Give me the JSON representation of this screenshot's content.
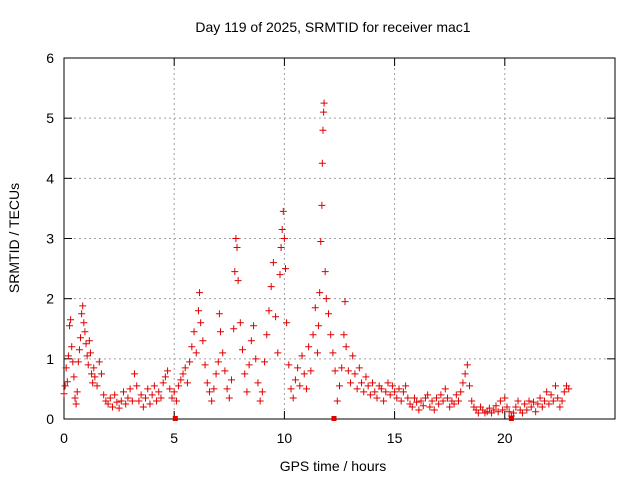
{
  "chart_data": {
    "type": "scatter",
    "title": "Day 119 of 2025, SRMTID for receiver mac1",
    "xlabel": "GPS time / hours",
    "ylabel": "SRMTID / TECUs",
    "xlim": [
      0,
      25
    ],
    "ylim": [
      0,
      6
    ],
    "x_ticks": [
      "0",
      "5",
      "10",
      "15",
      "20"
    ],
    "y_ticks": [
      "0",
      "1",
      "2",
      "3",
      "4",
      "5",
      "6"
    ],
    "grid": true,
    "marker": "+",
    "series": [
      {
        "name": "SRMTID",
        "color": "#e00000",
        "points": [
          [
            0.0,
            0.42
          ],
          [
            0.05,
            0.55
          ],
          [
            0.1,
            0.85
          ],
          [
            0.15,
            0.62
          ],
          [
            0.2,
            1.05
          ],
          [
            0.25,
            1.55
          ],
          [
            0.3,
            1.65
          ],
          [
            0.35,
            1.2
          ],
          [
            0.4,
            0.95
          ],
          [
            0.45,
            0.7
          ],
          [
            0.5,
            0.35
          ],
          [
            0.55,
            0.25
          ],
          [
            0.6,
            0.45
          ],
          [
            0.65,
            0.95
          ],
          [
            0.7,
            1.15
          ],
          [
            0.75,
            1.35
          ],
          [
            0.8,
            1.75
          ],
          [
            0.85,
            1.88
          ],
          [
            0.9,
            1.6
          ],
          [
            0.95,
            1.45
          ],
          [
            1.0,
            1.25
          ],
          [
            1.05,
            1.05
          ],
          [
            1.1,
            0.9
          ],
          [
            1.15,
            1.3
          ],
          [
            1.2,
            1.1
          ],
          [
            1.25,
            0.75
          ],
          [
            1.3,
            0.6
          ],
          [
            1.35,
            0.85
          ],
          [
            1.4,
            0.7
          ],
          [
            1.5,
            0.55
          ],
          [
            1.6,
            0.95
          ],
          [
            1.7,
            0.75
          ],
          [
            1.8,
            0.4
          ],
          [
            1.9,
            0.3
          ],
          [
            2.0,
            0.25
          ],
          [
            2.1,
            0.35
          ],
          [
            2.2,
            0.2
          ],
          [
            2.3,
            0.4
          ],
          [
            2.4,
            0.28
          ],
          [
            2.5,
            0.18
          ],
          [
            2.6,
            0.3
          ],
          [
            2.7,
            0.45
          ],
          [
            2.8,
            0.25
          ],
          [
            2.9,
            0.35
          ],
          [
            3.0,
            0.5
          ],
          [
            3.1,
            0.3
          ],
          [
            3.2,
            0.75
          ],
          [
            3.3,
            0.55
          ],
          [
            3.4,
            0.3
          ],
          [
            3.5,
            0.4
          ],
          [
            3.6,
            0.2
          ],
          [
            3.7,
            0.35
          ],
          [
            3.8,
            0.5
          ],
          [
            3.9,
            0.25
          ],
          [
            4.0,
            0.4
          ],
          [
            4.1,
            0.55
          ],
          [
            4.2,
            0.3
          ],
          [
            4.3,
            0.45
          ],
          [
            4.4,
            0.35
          ],
          [
            4.5,
            0.6
          ],
          [
            4.6,
            0.7
          ],
          [
            4.7,
            0.8
          ],
          [
            4.8,
            0.5
          ],
          [
            4.9,
            0.35
          ],
          [
            5.0,
            0.45
          ],
          [
            5.1,
            0.3
          ],
          [
            5.2,
            0.55
          ],
          [
            5.3,
            0.65
          ],
          [
            5.4,
            0.75
          ],
          [
            5.5,
            0.85
          ],
          [
            5.6,
            0.6
          ],
          [
            5.7,
            0.95
          ],
          [
            5.8,
            1.2
          ],
          [
            5.9,
            1.45
          ],
          [
            6.0,
            1.1
          ],
          [
            6.1,
            1.8
          ],
          [
            6.15,
            2.1
          ],
          [
            6.2,
            1.6
          ],
          [
            6.3,
            1.3
          ],
          [
            6.4,
            0.9
          ],
          [
            6.5,
            0.6
          ],
          [
            6.6,
            0.45
          ],
          [
            6.7,
            0.3
          ],
          [
            6.8,
            0.5
          ],
          [
            6.9,
            0.75
          ],
          [
            7.0,
            0.95
          ],
          [
            7.05,
            1.75
          ],
          [
            7.1,
            1.45
          ],
          [
            7.2,
            1.1
          ],
          [
            7.3,
            0.8
          ],
          [
            7.4,
            0.5
          ],
          [
            7.5,
            0.35
          ],
          [
            7.6,
            0.65
          ],
          [
            7.7,
            1.5
          ],
          [
            7.75,
            2.45
          ],
          [
            7.8,
            3.0
          ],
          [
            7.85,
            2.85
          ],
          [
            7.9,
            2.3
          ],
          [
            8.0,
            1.6
          ],
          [
            8.1,
            1.15
          ],
          [
            8.2,
            0.75
          ],
          [
            8.3,
            0.45
          ],
          [
            8.4,
            0.9
          ],
          [
            8.5,
            1.3
          ],
          [
            8.6,
            1.55
          ],
          [
            8.7,
            1.0
          ],
          [
            8.8,
            0.6
          ],
          [
            8.9,
            0.3
          ],
          [
            9.0,
            0.45
          ],
          [
            9.1,
            0.95
          ],
          [
            9.2,
            1.4
          ],
          [
            9.3,
            1.8
          ],
          [
            9.4,
            2.2
          ],
          [
            9.5,
            2.6
          ],
          [
            9.6,
            1.7
          ],
          [
            9.7,
            1.1
          ],
          [
            9.8,
            2.4
          ],
          [
            9.85,
            2.85
          ],
          [
            9.9,
            3.15
          ],
          [
            9.95,
            3.45
          ],
          [
            10.0,
            3.0
          ],
          [
            10.05,
            2.5
          ],
          [
            10.1,
            1.6
          ],
          [
            10.2,
            0.9
          ],
          [
            10.3,
            0.5
          ],
          [
            10.4,
            0.35
          ],
          [
            10.5,
            0.65
          ],
          [
            10.6,
            0.85
          ],
          [
            10.7,
            0.55
          ],
          [
            10.8,
            1.05
          ],
          [
            10.9,
            0.75
          ],
          [
            11.0,
            0.5
          ],
          [
            11.1,
            1.2
          ],
          [
            11.2,
            0.8
          ],
          [
            11.3,
            1.4
          ],
          [
            11.4,
            1.85
          ],
          [
            11.5,
            1.1
          ],
          [
            11.55,
            1.55
          ],
          [
            11.6,
            2.1
          ],
          [
            11.65,
            2.95
          ],
          [
            11.7,
            3.55
          ],
          [
            11.72,
            4.25
          ],
          [
            11.75,
            4.8
          ],
          [
            11.78,
            5.1
          ],
          [
            11.8,
            5.25
          ],
          [
            11.85,
            2.45
          ],
          [
            11.9,
            2.0
          ],
          [
            12.0,
            1.75
          ],
          [
            12.1,
            1.4
          ],
          [
            12.2,
            1.1
          ],
          [
            12.3,
            0.8
          ],
          [
            12.4,
            0.3
          ],
          [
            12.5,
            0.55
          ],
          [
            12.6,
            0.85
          ],
          [
            12.7,
            1.4
          ],
          [
            12.75,
            1.95
          ],
          [
            12.8,
            1.2
          ],
          [
            12.9,
            0.8
          ],
          [
            13.0,
            0.6
          ],
          [
            13.1,
            1.05
          ],
          [
            13.2,
            0.75
          ],
          [
            13.3,
            0.5
          ],
          [
            13.4,
            0.85
          ],
          [
            13.5,
            0.6
          ],
          [
            13.6,
            0.45
          ],
          [
            13.7,
            0.7
          ],
          [
            13.8,
            0.55
          ],
          [
            13.9,
            0.4
          ],
          [
            14.0,
            0.6
          ],
          [
            14.1,
            0.45
          ],
          [
            14.2,
            0.35
          ],
          [
            14.3,
            0.55
          ],
          [
            14.4,
            0.5
          ],
          [
            14.5,
            0.3
          ],
          [
            14.6,
            0.45
          ],
          [
            14.7,
            0.6
          ],
          [
            14.8,
            0.4
          ],
          [
            14.9,
            0.55
          ],
          [
            15.0,
            0.45
          ],
          [
            15.1,
            0.35
          ],
          [
            15.2,
            0.5
          ],
          [
            15.3,
            0.3
          ],
          [
            15.4,
            0.45
          ],
          [
            15.5,
            0.55
          ],
          [
            15.6,
            0.35
          ],
          [
            15.7,
            0.25
          ],
          [
            15.8,
            0.2
          ],
          [
            15.9,
            0.35
          ],
          [
            16.0,
            0.28
          ],
          [
            16.1,
            0.15
          ],
          [
            16.2,
            0.3
          ],
          [
            16.3,
            0.22
          ],
          [
            16.4,
            0.35
          ],
          [
            16.5,
            0.4
          ],
          [
            16.6,
            0.2
          ],
          [
            16.7,
            0.3
          ],
          [
            16.8,
            0.15
          ],
          [
            16.9,
            0.35
          ],
          [
            17.0,
            0.25
          ],
          [
            17.1,
            0.4
          ],
          [
            17.2,
            0.3
          ],
          [
            17.3,
            0.5
          ],
          [
            17.4,
            0.35
          ],
          [
            17.5,
            0.2
          ],
          [
            17.6,
            0.3
          ],
          [
            17.7,
            0.25
          ],
          [
            17.8,
            0.4
          ],
          [
            17.9,
            0.3
          ],
          [
            18.0,
            0.45
          ],
          [
            18.1,
            0.6
          ],
          [
            18.2,
            0.75
          ],
          [
            18.3,
            0.9
          ],
          [
            18.4,
            0.55
          ],
          [
            18.5,
            0.3
          ],
          [
            18.6,
            0.2
          ],
          [
            18.7,
            0.15
          ],
          [
            18.8,
            0.1
          ],
          [
            18.9,
            0.2
          ],
          [
            19.0,
            0.15
          ],
          [
            19.1,
            0.1
          ],
          [
            19.2,
            0.12
          ],
          [
            19.3,
            0.18
          ],
          [
            19.4,
            0.1
          ],
          [
            19.5,
            0.15
          ],
          [
            19.6,
            0.22
          ],
          [
            19.7,
            0.12
          ],
          [
            19.8,
            0.3
          ],
          [
            19.9,
            0.15
          ],
          [
            20.0,
            0.35
          ],
          [
            20.1,
            0.2
          ],
          [
            20.2,
            0.12
          ],
          [
            20.3,
            0.05
          ],
          [
            20.4,
            0.1
          ],
          [
            20.5,
            0.2
          ],
          [
            20.6,
            0.3
          ],
          [
            20.7,
            0.15
          ],
          [
            20.8,
            0.1
          ],
          [
            20.9,
            0.25
          ],
          [
            21.0,
            0.15
          ],
          [
            21.1,
            0.3
          ],
          [
            21.2,
            0.2
          ],
          [
            21.3,
            0.28
          ],
          [
            21.4,
            0.12
          ],
          [
            21.5,
            0.25
          ],
          [
            21.6,
            0.35
          ],
          [
            21.7,
            0.2
          ],
          [
            21.8,
            0.3
          ],
          [
            21.9,
            0.45
          ],
          [
            22.0,
            0.25
          ],
          [
            22.1,
            0.4
          ],
          [
            22.2,
            0.3
          ],
          [
            22.3,
            0.55
          ],
          [
            22.4,
            0.35
          ],
          [
            22.5,
            0.2
          ],
          [
            22.6,
            0.3
          ],
          [
            22.7,
            0.45
          ],
          [
            22.8,
            0.55
          ],
          [
            22.9,
            0.5
          ]
        ]
      }
    ],
    "zero_markers": [
      5.05,
      12.25,
      20.3
    ]
  }
}
